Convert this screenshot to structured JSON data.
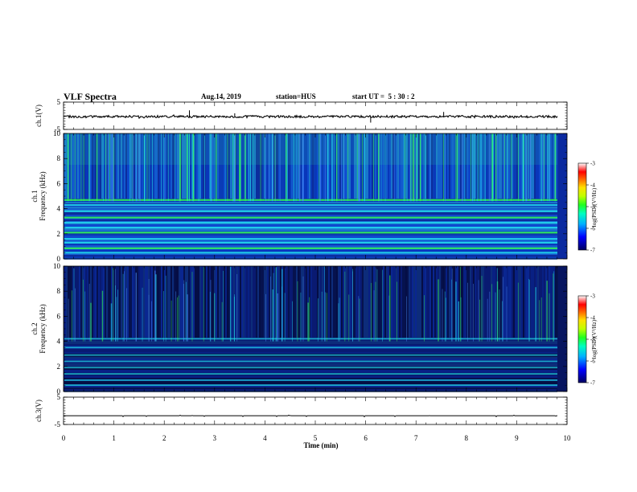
{
  "header": {
    "title": "VLF Spectra",
    "date": "Aug.14, 2019",
    "station": "station=HUS",
    "start": "start UT =  5 : 30 : 2"
  },
  "chart_data": [
    {
      "type": "line",
      "panel": "ch1-waveform",
      "ylabel": "ch.1(V)",
      "ylim": [
        -5,
        5
      ],
      "yticks": [
        "5",
        "-5"
      ],
      "baseline": -0.3,
      "spikes": [
        {
          "x": 2.5,
          "y": 2.0
        },
        {
          "x": 3.4,
          "y": 0.9
        },
        {
          "x": 6.1,
          "y": -2.5
        },
        {
          "x": 7.55,
          "y": 1.4
        }
      ]
    },
    {
      "type": "heatmap",
      "panel": "ch1-spectrogram",
      "ylabel_top": "ch.1",
      "ylabel_bottom": "Frequency (kHz)",
      "ylim": [
        0,
        10
      ],
      "yticks": [
        "0",
        "2",
        "4",
        "6",
        "8",
        "10"
      ],
      "colorbar_label": "log(PSD)(V²/Hz)",
      "colorbar_ticks": [
        "-3",
        "-4",
        "-5",
        "-6",
        "-7"
      ],
      "bands_khz": [
        0.5,
        0.85,
        1.3,
        1.6,
        2.1,
        2.5,
        2.9,
        3.3,
        3.8,
        4.3,
        4.7
      ],
      "intensity": "high"
    },
    {
      "type": "heatmap",
      "panel": "ch2-spectrogram",
      "ylabel_top": "ch.2",
      "ylabel_bottom": "Frequency (kHz)",
      "ylim": [
        0,
        10
      ],
      "yticks": [
        "0",
        "2",
        "4",
        "6",
        "8",
        "10"
      ],
      "colorbar_label": "log(PSD)(V²/Hz)",
      "colorbar_ticks": [
        "-3",
        "-4",
        "-5",
        "-6",
        "-7"
      ],
      "bands_khz": [
        0.5,
        0.9,
        1.4,
        1.9,
        2.4,
        2.9,
        3.5,
        4.2
      ],
      "intensity": "low"
    },
    {
      "type": "line",
      "panel": "ch3-waveform",
      "ylabel": "ch.3(V)",
      "ylim": [
        -5,
        5
      ],
      "yticks": [
        "5",
        "-5"
      ],
      "baseline": -1.8
    }
  ],
  "x_axis": {
    "label": "Time (min)",
    "range": [
      0,
      10
    ],
    "ticks": [
      "0",
      "1",
      "2",
      "3",
      "4",
      "5",
      "6",
      "7",
      "8",
      "9",
      "10"
    ]
  },
  "colors": {
    "spectrogram_background": "#0a1f7a",
    "band_bright": "#22ddee",
    "band_green": "#33ff55",
    "trace": "#000000"
  }
}
